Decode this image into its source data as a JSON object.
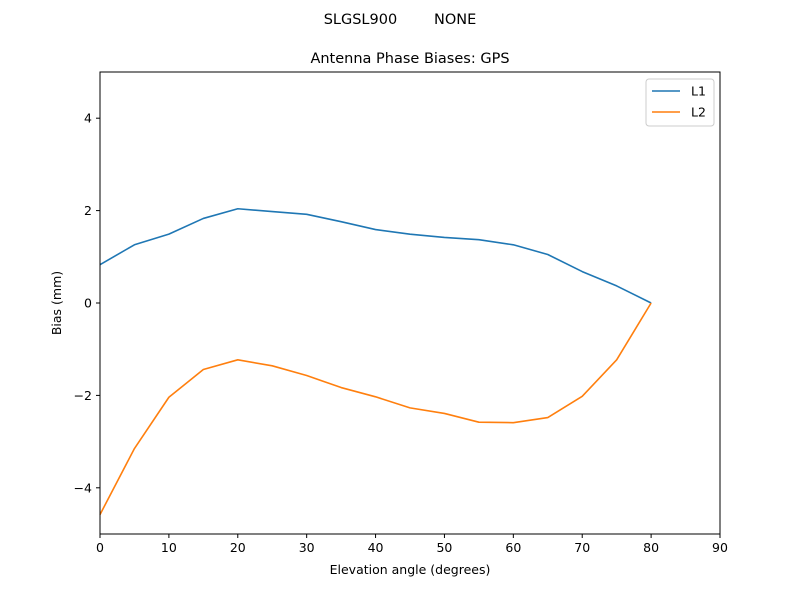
{
  "figure": {
    "suptitle": "SLGSL900        NONE"
  },
  "chart_data": {
    "type": "line",
    "title": "Antenna Phase Biases: GPS",
    "xlabel": "Elevation angle (degrees)",
    "ylabel": "Bias (mm)",
    "xlim": [
      0,
      90
    ],
    "ylim": [
      -5,
      5
    ],
    "xticks": [
      0,
      10,
      20,
      30,
      40,
      50,
      60,
      70,
      80,
      90
    ],
    "yticks": [
      -4,
      -2,
      0,
      2,
      4
    ],
    "xtick_labels": [
      "0",
      "10",
      "20",
      "30",
      "40",
      "50",
      "60",
      "70",
      "80",
      "90"
    ],
    "ytick_labels": [
      "−4",
      "−2",
      "0",
      "2",
      "4"
    ],
    "grid": false,
    "legend_position": "top-right",
    "x": [
      0,
      5,
      10,
      15,
      20,
      25,
      30,
      35,
      40,
      45,
      50,
      55,
      60,
      65,
      70,
      75,
      80
    ],
    "series": [
      {
        "name": "L1",
        "color": "#1f77b4",
        "values": [
          0.83,
          1.26,
          1.49,
          1.83,
          2.04,
          1.98,
          1.92,
          1.76,
          1.59,
          1.49,
          1.42,
          1.37,
          1.26,
          1.05,
          0.68,
          0.37,
          0.0
        ]
      },
      {
        "name": "L2",
        "color": "#ff7f0e",
        "values": [
          -4.58,
          -3.15,
          -2.04,
          -1.44,
          -1.23,
          -1.36,
          -1.57,
          -1.83,
          -2.03,
          -2.27,
          -2.39,
          -2.58,
          -2.59,
          -2.48,
          -2.02,
          -1.23,
          0.0
        ]
      }
    ]
  }
}
